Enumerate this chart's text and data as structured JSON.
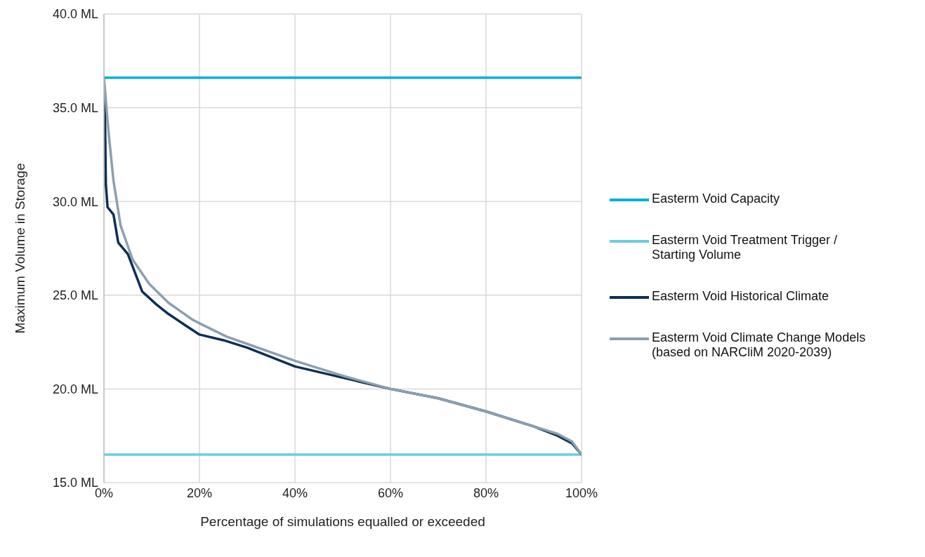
{
  "chart_data": {
    "type": "line",
    "xlabel": "Percentage of simulations equalled or exceeded",
    "ylabel": "Maximum Volume in Storage",
    "xlim": [
      0,
      100
    ],
    "xticks": [
      {
        "value": 0,
        "label": "0%"
      },
      {
        "value": 20,
        "label": "20%"
      },
      {
        "value": 40,
        "label": "40%"
      },
      {
        "value": 60,
        "label": "60%"
      },
      {
        "value": 80,
        "label": "80%"
      },
      {
        "value": 100,
        "label": "100%"
      }
    ],
    "ylim": [
      15,
      40
    ],
    "yticks": [
      {
        "value": 15,
        "label": "15.0 ML"
      },
      {
        "value": 20,
        "label": "20.0 ML"
      },
      {
        "value": 25,
        "label": "25.0 ML"
      },
      {
        "value": 30,
        "label": "30.0 ML"
      },
      {
        "value": 35,
        "label": "35.0 ML"
      },
      {
        "value": 40,
        "label": "40.0 ML"
      }
    ],
    "grid": true,
    "legend": "right",
    "marker": "none",
    "line_style": "solid",
    "series": [
      {
        "name": "Easterm Void Capacity",
        "color": "#00b0d8",
        "x": [
          0,
          100
        ],
        "values": [
          36.6,
          36.6
        ]
      },
      {
        "name": "Easterm Void Treatment Trigger / Starting Volume",
        "color": "#66cfe0",
        "x": [
          0,
          100
        ],
        "values": [
          16.5,
          16.5
        ]
      },
      {
        "name": "Easterm Void Historical Climate",
        "color": "#0d2f55",
        "x": [
          0,
          0.2,
          0.4,
          0.75,
          2,
          3,
          5,
          6.5,
          8,
          11,
          13.5,
          17.6,
          20,
          25,
          30,
          40,
          50,
          60,
          70,
          80,
          90,
          95,
          98,
          100
        ],
        "values": [
          36.6,
          34.8,
          30.9,
          29.7,
          29.3,
          27.8,
          27.2,
          26.2,
          25.2,
          24.5,
          24,
          23.3,
          22.9,
          22.6,
          22.2,
          21.2,
          20.6,
          20,
          19.5,
          18.8,
          18,
          17.5,
          17.1,
          16.5
        ]
      },
      {
        "name": "Easterm Void Climate Change Models (based on NARCliM 2020-2039)",
        "color": "#8c9fb0",
        "x": [
          0,
          1,
          2,
          3.5,
          6,
          9.5,
          13.5,
          18.5,
          20,
          25.6,
          30,
          40,
          50,
          60,
          70,
          80,
          90,
          95,
          98,
          100
        ],
        "values": [
          36.6,
          33.6,
          31.1,
          28.7,
          26.9,
          25.6,
          24.6,
          23.7,
          23.5,
          22.8,
          22.4,
          21.5,
          20.7,
          20,
          19.5,
          18.8,
          18,
          17.6,
          17.2,
          16.5
        ]
      }
    ]
  }
}
